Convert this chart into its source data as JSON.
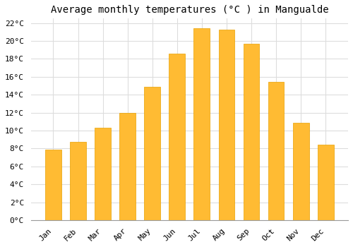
{
  "title": "Average monthly temperatures (°C ) in Mangualde",
  "months": [
    "Jan",
    "Feb",
    "Mar",
    "Apr",
    "May",
    "Jun",
    "Jul",
    "Aug",
    "Sep",
    "Oct",
    "Nov",
    "Dec"
  ],
  "values": [
    7.9,
    8.7,
    10.3,
    12.0,
    14.9,
    18.6,
    21.4,
    21.3,
    19.7,
    15.4,
    10.9,
    8.4
  ],
  "bar_color": "#FFBB33",
  "bar_edge_color": "#E8A000",
  "background_color": "#FFFFFF",
  "grid_color": "#DDDDDD",
  "ylim": [
    0,
    22.5
  ],
  "ytick_vals": [
    0,
    2,
    4,
    6,
    8,
    10,
    12,
    14,
    16,
    18,
    20,
    22
  ],
  "title_fontsize": 10,
  "tick_fontsize": 8,
  "font_family": "monospace",
  "bar_width": 0.65
}
